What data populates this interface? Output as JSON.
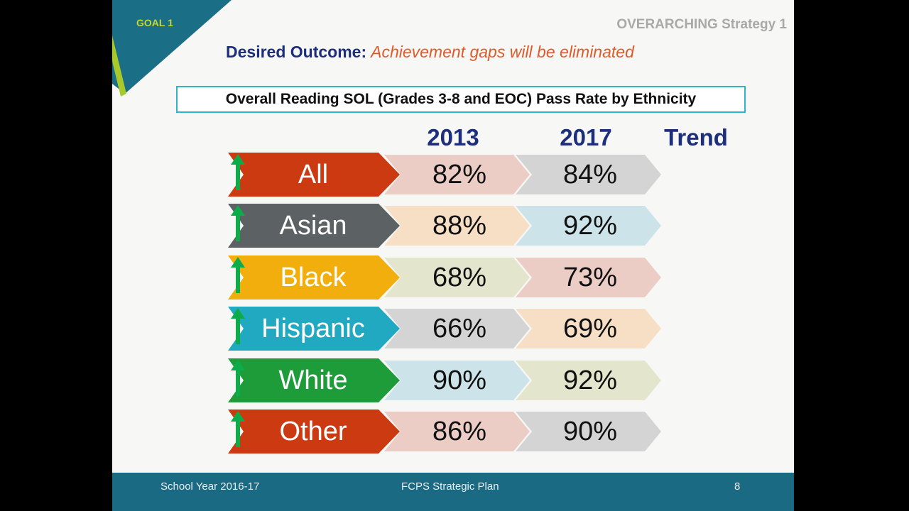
{
  "header": {
    "goal": "GOAL 1",
    "strategy": "OVERARCHING Strategy 1",
    "outcome_label": "Desired Outcome:",
    "outcome_text": "Achievement gaps will be eliminated"
  },
  "table": {
    "title": "Overall Reading SOL (Grades 3-8 and EOC) Pass Rate by Ethnicity",
    "col_2013": "2013",
    "col_2017": "2017",
    "col_trend": "Trend",
    "rows": [
      {
        "group": "All",
        "y2013": "82%",
        "y2017": "84%",
        "trend": "up-arrow-icon",
        "color": "#cc3a12",
        "c1": "#ebcdc5",
        "c2": "#d4d4d4"
      },
      {
        "group": "Asian",
        "y2013": "88%",
        "y2017": "92%",
        "trend": "up-arrow-icon",
        "color": "#5c6263",
        "c1": "#f7dfc6",
        "c2": "#cde3ea"
      },
      {
        "group": "Black",
        "y2013": "68%",
        "y2017": "73%",
        "trend": "up-arrow-icon",
        "color": "#f2ae0c",
        "c1": "#e3e6cc",
        "c2": "#ebcdc5"
      },
      {
        "group": "Hispanic",
        "y2013": "66%",
        "y2017": "69%",
        "trend": "up-arrow-icon",
        "color": "#21a9c2",
        "c1": "#d4d4d4",
        "c2": "#f7dfc6"
      },
      {
        "group": "White",
        "y2013": "90%",
        "y2017": "92%",
        "trend": "up-arrow-icon",
        "color": "#1e9c3a",
        "c1": "#cde3ea",
        "c2": "#e3e6cc"
      },
      {
        "group": "Other",
        "y2013": "86%",
        "y2017": "90%",
        "trend": "up-arrow-icon",
        "color": "#cc3a12",
        "c1": "#ebcdc5",
        "c2": "#d4d4d4"
      }
    ]
  },
  "footer": {
    "left": "School Year 2016-17",
    "center": "FCPS Strategic Plan",
    "page": "8"
  },
  "colors": {
    "title_blue": "#1d2f7c",
    "outcome_orange": "#de5b2b",
    "footer_teal": "#1b6a84",
    "trend_green": "#0dac4a"
  }
}
